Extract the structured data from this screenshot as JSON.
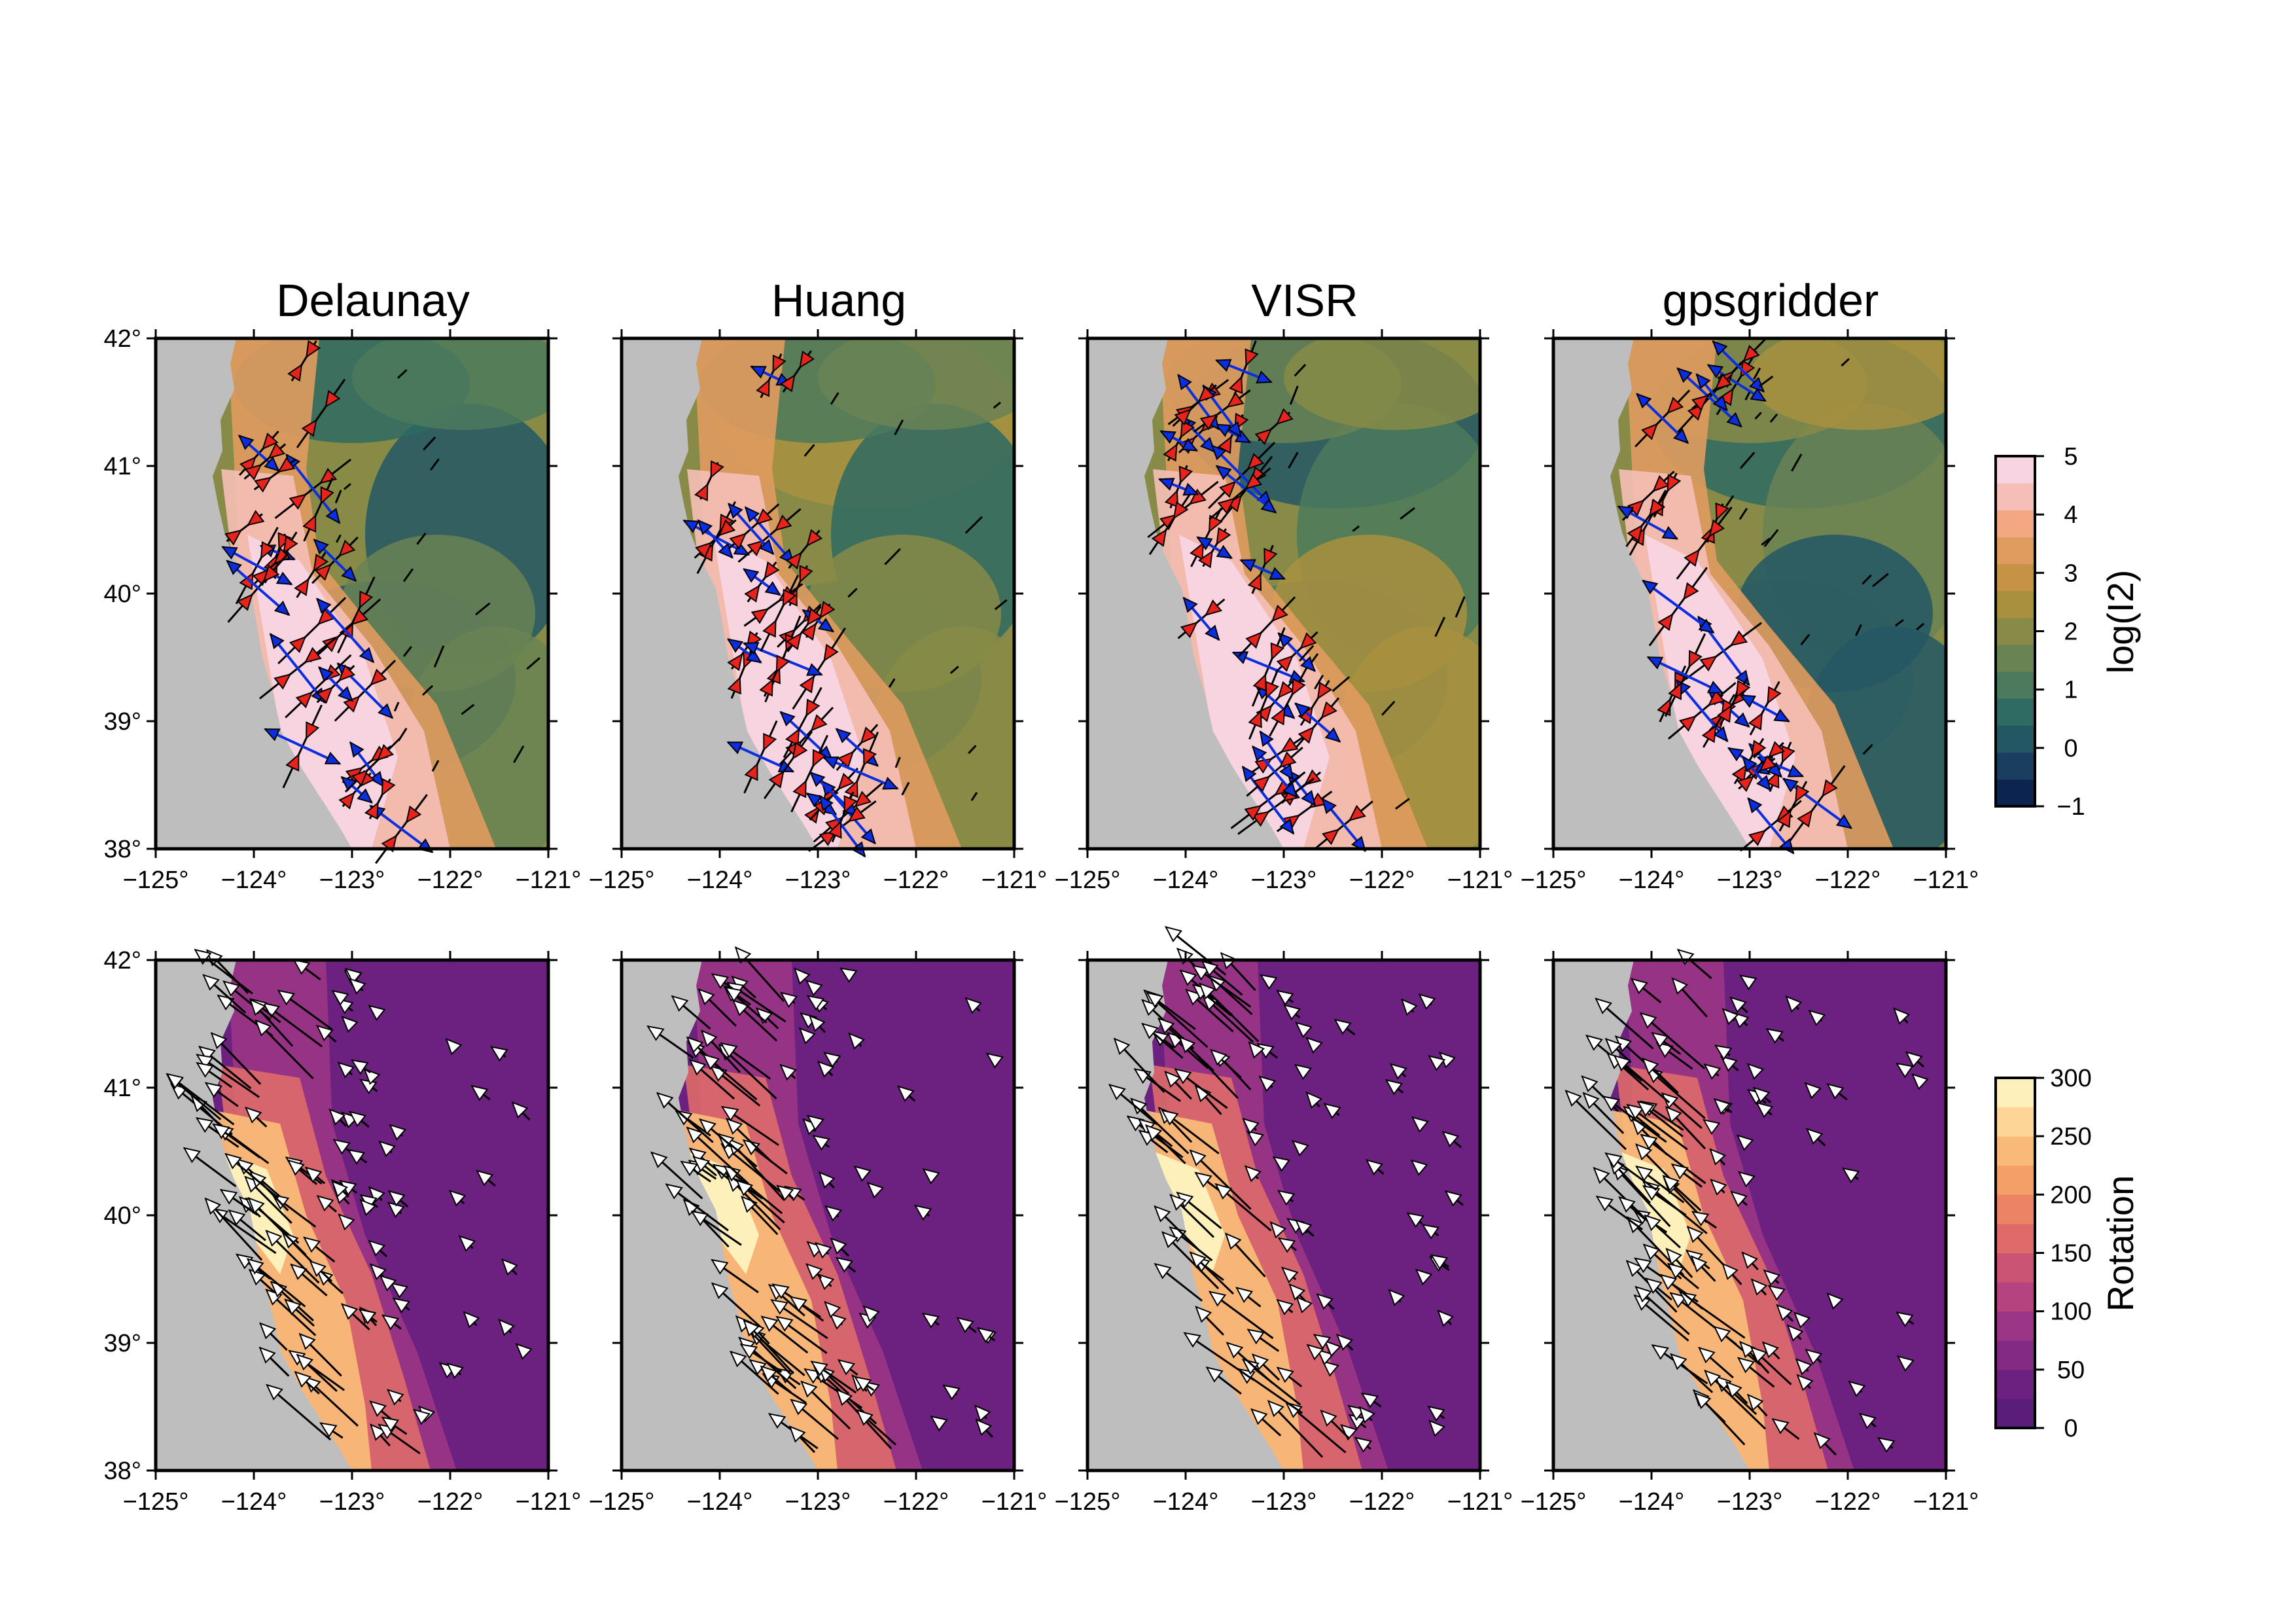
{
  "panel_titles": [
    "Delaunay",
    "Huang",
    "VISR",
    "gpsgridder"
  ],
  "map": {
    "lon_range": [
      -125,
      -121
    ],
    "lat_range": [
      38,
      42
    ],
    "x_tick_labels": [
      "−125°",
      "−124°",
      "−123°",
      "−122°",
      "−121°"
    ],
    "y_tick_labels": [
      "38°",
      "39°",
      "40°",
      "41°",
      "42°"
    ],
    "land_color": "#bebebe",
    "compression_arrow_color": "#e8231c",
    "extension_arrow_color": "#0b2fe0",
    "velocity_arrow_color": "#ffffff"
  },
  "colorbars": [
    {
      "label": "log(I2)",
      "range": [
        -1,
        5
      ],
      "tick_labels": [
        "5",
        "4",
        "3",
        "2",
        "1",
        "0",
        "−1"
      ],
      "colors": [
        "#0b2450",
        "#1a3f5e",
        "#235764",
        "#2f6a63",
        "#4b7a5c",
        "#6a8353",
        "#878b47",
        "#a8903f",
        "#c59346",
        "#e09b5e",
        "#f1a883",
        "#f6bfb6",
        "#f8d4e3"
      ]
    },
    {
      "label": "Rotation",
      "range": [
        0,
        300
      ],
      "tick_labels": [
        "300",
        "250",
        "200",
        "150",
        "100",
        "50",
        "0"
      ],
      "colors": [
        "#5a1d7a",
        "#6c2080",
        "#832a85",
        "#9b3585",
        "#b4437f",
        "#cb5475",
        "#de6a6a",
        "#ec8364",
        "#f49e68",
        "#f9b979",
        "#fdd597",
        "#fef0bb"
      ]
    }
  ]
}
